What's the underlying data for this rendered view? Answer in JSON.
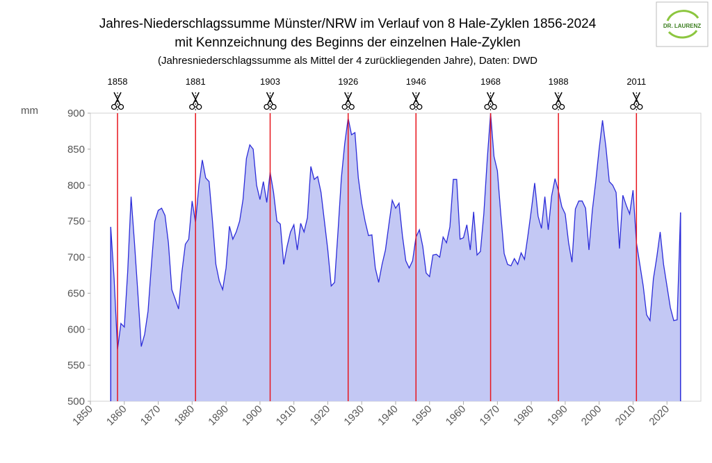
{
  "chart_data": {
    "type": "area",
    "title": "Jahres-Niederschlagssumme  Münster/NRW im Verlauf von 8 Hale-Zyklen 1856-2024",
    "subtitle": "mit Kennzeichnung  des Beginns  der einzelnen  Hale-Zyklen",
    "note": "(Jahresniederschlagssumme  als Mittel der 4 zurückliegenden Jahre), Daten: DWD",
    "ylabel": "mm",
    "logo": "Dr. Laurenz",
    "color": "#2b2bd9",
    "fill": "#c3c8f4",
    "cycle_color": "#e8141c",
    "cycles": [
      1858,
      1881,
      1903,
      1926,
      1946,
      1968,
      1988,
      2011
    ],
    "xlim": [
      1850,
      2030
    ],
    "xticks": [
      1850,
      1860,
      1870,
      1880,
      1890,
      1900,
      1910,
      1920,
      1930,
      1940,
      1950,
      1960,
      1970,
      1980,
      1990,
      2000,
      2010,
      2020
    ],
    "ylim": [
      500,
      900
    ],
    "yticks": [
      500,
      550,
      600,
      650,
      700,
      750,
      800,
      850,
      900
    ],
    "x": [
      1856,
      1857,
      1858,
      1859,
      1860,
      1861,
      1862,
      1863,
      1864,
      1865,
      1866,
      1867,
      1868,
      1869,
      1870,
      1871,
      1872,
      1873,
      1874,
      1875,
      1876,
      1877,
      1878,
      1879,
      1880,
      1881,
      1882,
      1883,
      1884,
      1885,
      1886,
      1887,
      1888,
      1889,
      1890,
      1891,
      1892,
      1893,
      1894,
      1895,
      1896,
      1897,
      1898,
      1899,
      1900,
      1901,
      1902,
      1903,
      1904,
      1905,
      1906,
      1907,
      1908,
      1909,
      1910,
      1911,
      1912,
      1913,
      1914,
      1915,
      1916,
      1917,
      1918,
      1919,
      1920,
      1921,
      1922,
      1923,
      1924,
      1925,
      1926,
      1927,
      1928,
      1929,
      1930,
      1931,
      1932,
      1933,
      1934,
      1935,
      1936,
      1937,
      1938,
      1939,
      1940,
      1941,
      1942,
      1943,
      1944,
      1945,
      1946,
      1947,
      1948,
      1949,
      1950,
      1951,
      1952,
      1953,
      1954,
      1955,
      1956,
      1957,
      1958,
      1959,
      1960,
      1961,
      1962,
      1963,
      1964,
      1965,
      1966,
      1967,
      1968,
      1969,
      1970,
      1971,
      1972,
      1973,
      1974,
      1975,
      1976,
      1977,
      1978,
      1979,
      1980,
      1981,
      1982,
      1983,
      1984,
      1985,
      1986,
      1987,
      1988,
      1989,
      1990,
      1991,
      1992,
      1993,
      1994,
      1995,
      1996,
      1997,
      1998,
      1999,
      2000,
      2001,
      2002,
      2003,
      2004,
      2005,
      2006,
      2007,
      2008,
      2009,
      2010,
      2011,
      2012,
      2013,
      2014,
      2015,
      2016,
      2017,
      2018,
      2019,
      2020,
      2021,
      2022,
      2023,
      2024
    ],
    "values": [
      742,
      670,
      572,
      608,
      603,
      680,
      784,
      720,
      650,
      576,
      593,
      625,
      690,
      750,
      765,
      768,
      758,
      720,
      655,
      642,
      628,
      680,
      718,
      725,
      778,
      748,
      800,
      835,
      810,
      805,
      750,
      690,
      667,
      655,
      685,
      743,
      725,
      735,
      750,
      780,
      837,
      856,
      850,
      800,
      780,
      805,
      776,
      818,
      790,
      750,
      746,
      690,
      715,
      735,
      745,
      710,
      747,
      735,
      755,
      826,
      808,
      812,
      790,
      750,
      710,
      660,
      665,
      735,
      810,
      858,
      893,
      870,
      873,
      810,
      775,
      750,
      730,
      731,
      685,
      665,
      690,
      710,
      745,
      779,
      768,
      775,
      730,
      695,
      685,
      695,
      728,
      738,
      715,
      678,
      673,
      703,
      704,
      700,
      728,
      720,
      742,
      808,
      808,
      725,
      727,
      745,
      710,
      763,
      703,
      708,
      760,
      835,
      900,
      840,
      820,
      760,
      705,
      690,
      688,
      698,
      690,
      706,
      697,
      730,
      765,
      803,
      757,
      740,
      784,
      738,
      785,
      809,
      792,
      770,
      760,
      720,
      693,
      767,
      778,
      778,
      768,
      710,
      765,
      805,
      850,
      890,
      853,
      805,
      800,
      790,
      712,
      786,
      772,
      760,
      793,
      720,
      690,
      660,
      620,
      612,
      670,
      700,
      735,
      690,
      660,
      630,
      612,
      613,
      762
    ]
  }
}
